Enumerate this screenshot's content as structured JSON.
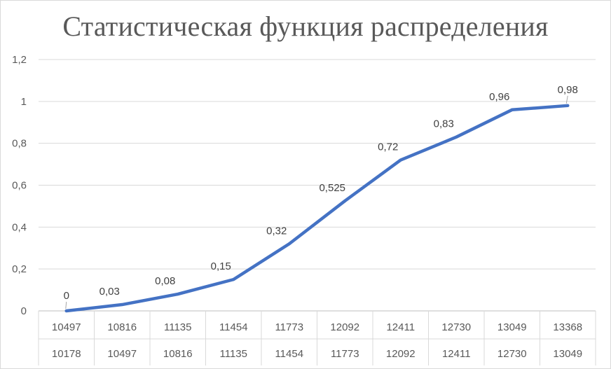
{
  "chart_data": {
    "type": "line",
    "title": "Статистическая функция распределения",
    "categories": [
      [
        "10497",
        "10178"
      ],
      [
        "10816",
        "10497"
      ],
      [
        "11135",
        "10816"
      ],
      [
        "11454",
        "11135"
      ],
      [
        "11773",
        "11454"
      ],
      [
        "12092",
        "11773"
      ],
      [
        "12411",
        "12092"
      ],
      [
        "12730",
        "12411"
      ],
      [
        "13049",
        "12730"
      ],
      [
        "13368",
        "13049"
      ]
    ],
    "series": [
      {
        "values": [
          0,
          0.03,
          0.08,
          0.15,
          0.32,
          0.525,
          0.72,
          0.83,
          0.96,
          0.98
        ],
        "labels": [
          "0",
          "0,03",
          "0,08",
          "0,15",
          "0,32",
          "0,525",
          "0,72",
          "0,83",
          "0,96",
          "0,98"
        ],
        "color": "#4472c4"
      }
    ],
    "ylim": [
      0,
      1.2
    ],
    "yticks": [
      "0",
      "0,2",
      "0,4",
      "0,6",
      "0,8",
      "1",
      "1,2"
    ],
    "grid": "horizontal",
    "legend": "none",
    "xlabel": "",
    "ylabel": ""
  }
}
